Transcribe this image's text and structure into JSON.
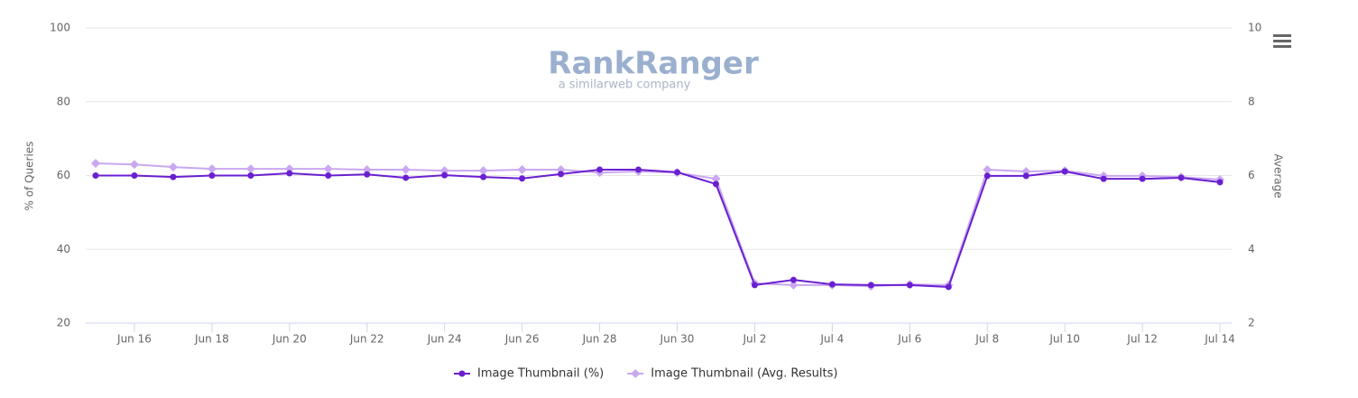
{
  "logo": {
    "name": "RankRanger",
    "tagline": "a similarweb company"
  },
  "chart_data": {
    "type": "line",
    "categories": [
      null,
      "Jun 16",
      null,
      "Jun 18",
      null,
      "Jun 20",
      null,
      "Jun 22",
      null,
      "Jun 24",
      null,
      "Jun 26",
      null,
      "Jun 28",
      null,
      "Jun 30",
      null,
      "Jul 2",
      null,
      "Jul 4",
      null,
      "Jul 6",
      null,
      "Jul 8",
      null,
      "Jul 10",
      null,
      "Jul 12",
      null,
      "Jul 14"
    ],
    "series": [
      {
        "name": "Image Thumbnail (%)",
        "color": "#6a1fd1",
        "values": [
          60,
          60,
          59.6,
          60,
          60,
          60.6,
          60,
          60.3,
          59.4,
          60.1,
          59.6,
          59.2,
          60.4,
          61.6,
          61.6,
          60.9,
          57.7,
          30.3,
          31.7,
          30.5,
          30.3,
          30.3,
          29.8,
          59.9,
          59.9,
          61.1,
          59.1,
          59.1,
          59.4,
          58.2
        ]
      },
      {
        "name": "Image Thumbnail (Avg. Results)",
        "color": "#c9a8f0",
        "axis": "y2",
        "values": [
          6.33,
          6.3,
          6.23,
          6.18,
          6.18,
          6.18,
          6.18,
          6.16,
          6.16,
          6.13,
          6.13,
          6.16,
          6.16,
          6.08,
          6.11,
          6.08,
          5.91,
          3.08,
          3.03,
          3.03,
          3.0,
          3.05,
          3.03,
          6.16,
          6.11,
          6.13,
          5.99,
          5.99,
          5.96,
          5.89
        ]
      }
    ],
    "ylabel": "% of Queries",
    "y2label": "Average",
    "ylim": [
      20,
      100
    ],
    "yticks": [
      20,
      40,
      60,
      80,
      100
    ],
    "y2lim": [
      2,
      10
    ],
    "y2ticks": [
      2,
      4,
      6,
      8,
      10
    ],
    "grid": true,
    "legend": "bottom"
  }
}
